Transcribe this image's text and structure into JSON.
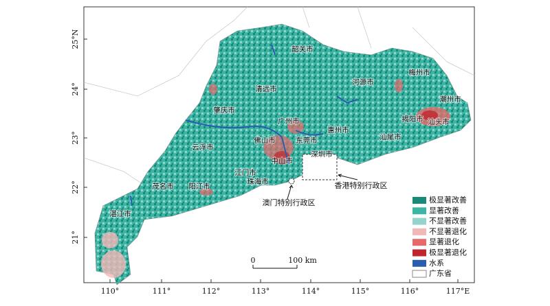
{
  "map": {
    "lon_labels": [
      "110°",
      "111°",
      "112°",
      "113°",
      "114°",
      "115°",
      "116°",
      "117°E"
    ],
    "lat_labels": [
      "25°N",
      "24°",
      "23°",
      "22°",
      "21°"
    ],
    "cities": [
      "韶关市",
      "梅州市",
      "河源市",
      "清远市",
      "潮州市",
      "肇庆市",
      "广州市",
      "揭阳市",
      "汕头市",
      "惠州市",
      "东莞市",
      "佛山市",
      "汕尾市",
      "云浮市",
      "深圳市",
      "中山市",
      "江门市",
      "珠海市",
      "茂名市",
      "阳江市",
      "湛江市"
    ],
    "annotations": [
      "香港特别行政区",
      "澳门特别行政区"
    ],
    "legend": [
      "极显著改善",
      "显著改善",
      "不显著改善",
      "不显著退化",
      "显著退化",
      "极显著退化",
      "水系",
      "广东省"
    ],
    "scale_bar": {
      "start": "0",
      "end": "100 km"
    }
  }
}
